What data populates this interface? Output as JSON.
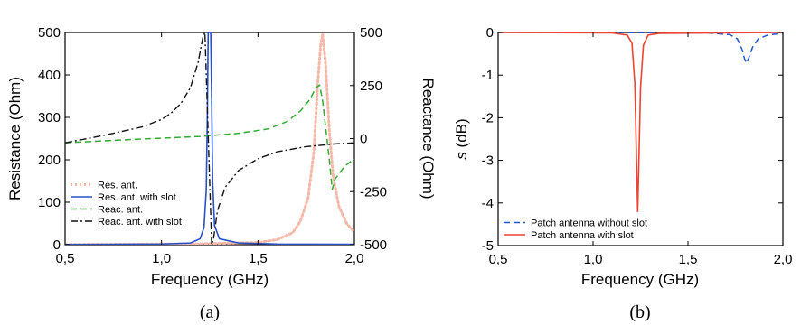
{
  "chart_data": [
    {
      "type": "line",
      "caption": "(a)",
      "xlabel": "Frequency (GHz)",
      "ylabel": "Resistance (Ohm)",
      "y2label": "Reactance (Ohm)",
      "xlim": [
        0.5,
        2.0
      ],
      "ylim": [
        0,
        500
      ],
      "y2lim": [
        -500,
        500
      ],
      "x_ticks": [
        "0,5",
        "1,0",
        "1,5",
        "2,0"
      ],
      "y_ticks": [
        "0",
        "100",
        "200",
        "300",
        "400",
        "500"
      ],
      "y2_ticks": [
        "-500",
        "-250",
        "0",
        "250",
        "500"
      ],
      "legend_position": "lower-left",
      "series": [
        {
          "name": "Res. ant.",
          "axis": "left",
          "style": "dotted",
          "color": "#f6b8a8",
          "points": [
            [
              0.5,
              0.5
            ],
            [
              0.8,
              1
            ],
            [
              1.2,
              2
            ],
            [
              1.5,
              5
            ],
            [
              1.6,
              12
            ],
            [
              1.68,
              28
            ],
            [
              1.72,
              55
            ],
            [
              1.76,
              110
            ],
            [
              1.79,
              220
            ],
            [
              1.81,
              380
            ],
            [
              1.825,
              470
            ],
            [
              1.835,
              497
            ],
            [
              1.85,
              430
            ],
            [
              1.87,
              270
            ],
            [
              1.89,
              160
            ],
            [
              1.92,
              90
            ],
            [
              1.96,
              50
            ],
            [
              2.0,
              30
            ]
          ]
        },
        {
          "name": "Res. ant. with slot",
          "axis": "left",
          "style": "solid",
          "color": "#2850c8",
          "points": [
            [
              0.5,
              0.5
            ],
            [
              1.0,
              1.5
            ],
            [
              1.15,
              4
            ],
            [
              1.2,
              14
            ],
            [
              1.22,
              40
            ],
            [
              1.232,
              130
            ],
            [
              1.238,
              320
            ],
            [
              1.242,
              500
            ],
            [
              1.255,
              500
            ],
            [
              1.26,
              340
            ],
            [
              1.265,
              150
            ],
            [
              1.275,
              45
            ],
            [
              1.3,
              14
            ],
            [
              1.4,
              4
            ],
            [
              1.6,
              1.5
            ],
            [
              2.0,
              1
            ]
          ]
        },
        {
          "name": "Reac. ant.",
          "axis": "right",
          "style": "dashed",
          "color": "#33aa33",
          "points": [
            [
              0.5,
              -20
            ],
            [
              0.8,
              -6
            ],
            [
              1.0,
              2
            ],
            [
              1.2,
              10
            ],
            [
              1.4,
              25
            ],
            [
              1.55,
              45
            ],
            [
              1.65,
              80
            ],
            [
              1.72,
              130
            ],
            [
              1.77,
              185
            ],
            [
              1.8,
              240
            ],
            [
              1.82,
              252
            ],
            [
              1.835,
              180
            ],
            [
              1.85,
              60
            ],
            [
              1.87,
              -100
            ],
            [
              1.885,
              -240
            ],
            [
              1.9,
              -190
            ],
            [
              1.95,
              -130
            ],
            [
              2.0,
              -95
            ]
          ]
        },
        {
          "name": "Reac. ant. with slot",
          "axis": "right",
          "style": "dashdot",
          "color": "#111111",
          "points": [
            [
              0.5,
              -20
            ],
            [
              0.7,
              15
            ],
            [
              0.9,
              55
            ],
            [
              1.0,
              90
            ],
            [
              1.05,
              120
            ],
            [
              1.1,
              165
            ],
            [
              1.15,
              240
            ],
            [
              1.19,
              360
            ],
            [
              1.215,
              480
            ],
            [
              1.225,
              500
            ],
            [
              1.26,
              -500
            ],
            [
              1.27,
              -470
            ],
            [
              1.29,
              -340
            ],
            [
              1.33,
              -230
            ],
            [
              1.4,
              -150
            ],
            [
              1.5,
              -95
            ],
            [
              1.6,
              -62
            ],
            [
              1.75,
              -38
            ],
            [
              1.9,
              -25
            ],
            [
              2.0,
              -20
            ]
          ]
        }
      ]
    },
    {
      "type": "line",
      "caption": "(b)",
      "xlabel": "Frequency (GHz)",
      "ylabel_prefix": "s",
      "ylabel_suffix": " (dB)",
      "xlim": [
        0.5,
        2.0
      ],
      "ylim": [
        -5,
        0
      ],
      "x_ticks": [
        "0,5",
        "1,0",
        "1,5",
        "2,0"
      ],
      "y_ticks": [
        "0",
        "-1",
        "-2",
        "-3",
        "-4",
        "-5"
      ],
      "legend_position": "lower-left",
      "series": [
        {
          "name": "Patch antenna without slot",
          "style": "dashed",
          "color": "#2255cc",
          "points": [
            [
              0.5,
              0
            ],
            [
              1.2,
              -0.005
            ],
            [
              1.6,
              -0.01
            ],
            [
              1.72,
              -0.05
            ],
            [
              1.76,
              -0.15
            ],
            [
              1.785,
              -0.4
            ],
            [
              1.8,
              -0.65
            ],
            [
              1.81,
              -0.72
            ],
            [
              1.82,
              -0.6
            ],
            [
              1.84,
              -0.35
            ],
            [
              1.87,
              -0.15
            ],
            [
              1.92,
              -0.06
            ],
            [
              2.0,
              -0.02
            ]
          ]
        },
        {
          "name": "Patch antenna with slot",
          "style": "solid",
          "color": "#ee4433",
          "points": [
            [
              0.5,
              0
            ],
            [
              1.1,
              -0.01
            ],
            [
              1.18,
              -0.06
            ],
            [
              1.205,
              -0.25
            ],
            [
              1.22,
              -1.2
            ],
            [
              1.23,
              -3.2
            ],
            [
              1.235,
              -4.2
            ],
            [
              1.24,
              -3.3
            ],
            [
              1.25,
              -1.3
            ],
            [
              1.265,
              -0.3
            ],
            [
              1.29,
              -0.06
            ],
            [
              1.35,
              -0.02
            ],
            [
              2.0,
              0
            ]
          ]
        }
      ]
    }
  ]
}
